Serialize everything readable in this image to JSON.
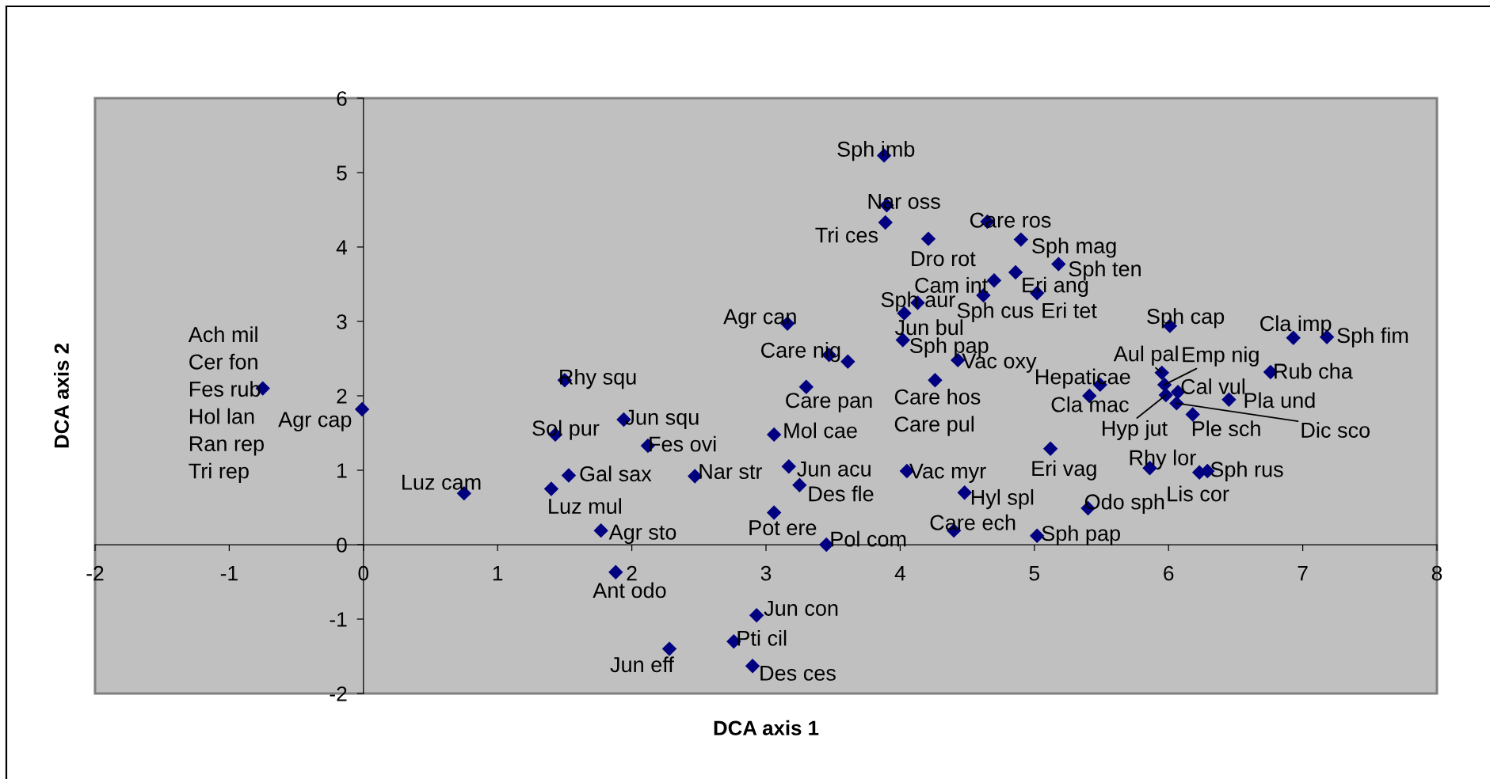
{
  "chart_data": {
    "type": "scatter",
    "xlabel": "DCA axis 1",
    "ylabel": "DCA axis 2",
    "x": [
      -0.75,
      -0.01,
      0.75,
      1.4,
      1.43,
      1.5,
      1.53,
      1.77,
      1.88,
      1.94,
      2.12,
      2.28,
      2.47,
      2.76,
      2.9,
      2.93,
      3.06,
      3.06,
      3.16,
      3.17,
      3.25,
      3.3,
      3.45,
      3.47,
      3.61,
      3.88,
      3.89,
      3.9,
      4.02,
      4.03,
      4.05,
      4.13,
      4.21,
      4.26,
      4.4,
      4.43,
      4.48,
      4.62,
      4.65,
      4.7,
      4.86,
      4.9,
      5.02,
      5.02,
      5.12,
      5.18,
      5.4,
      5.41,
      5.49,
      5.86,
      5.95,
      5.97,
      5.98,
      6.01,
      6.06,
      6.07,
      6.18,
      6.23,
      6.29,
      6.45,
      6.76,
      6.93,
      7.18
    ],
    "values": [
      2.1,
      1.82,
      0.69,
      0.75,
      1.48,
      2.21,
      0.93,
      0.19,
      -0.37,
      1.68,
      1.33,
      -1.4,
      0.92,
      -1.3,
      -1.63,
      -0.95,
      1.48,
      0.43,
      2.97,
      1.05,
      0.8,
      2.12,
      0.0,
      2.55,
      2.46,
      5.23,
      4.33,
      4.56,
      2.75,
      3.11,
      0.99,
      3.25,
      4.11,
      2.21,
      0.19,
      2.48,
      0.7,
      3.35,
      4.34,
      3.55,
      3.66,
      4.1,
      3.38,
      0.12,
      1.29,
      3.77,
      0.49,
      2.0,
      2.15,
      1.03,
      2.31,
      2.15,
      2.01,
      2.94,
      1.9,
      2.05,
      1.75,
      0.97,
      0.99,
      1.95,
      2.32,
      2.78,
      2.79
    ],
    "color": "#000080",
    "marker": "diamond",
    "xlim": [
      -2,
      8
    ],
    "ylim": [
      -2,
      6
    ],
    "xticks": [
      -2,
      -1,
      0,
      1,
      2,
      3,
      4,
      5,
      6,
      7,
      8
    ],
    "yticks": [
      -2,
      -1,
      0,
      1,
      2,
      3,
      4,
      5,
      6
    ],
    "annotations": [
      {
        "text": "Ach mil\nCer fon\nFes rub\nHol lan\nRan rep\nTri rep",
        "x": -0.75,
        "y": 2.1
      },
      {
        "text": "Agr cap",
        "x": -0.01,
        "y": 1.82
      },
      {
        "text": "Luz cam",
        "x": 0.75,
        "y": 0.69
      },
      {
        "text": "Luz mul",
        "x": 1.4,
        "y": 0.75
      },
      {
        "text": "Sol pur",
        "x": 1.43,
        "y": 1.48
      },
      {
        "text": "Rhy squ",
        "x": 1.5,
        "y": 2.21
      },
      {
        "text": "Gal sax",
        "x": 1.53,
        "y": 0.93
      },
      {
        "text": "Agr sto",
        "x": 1.77,
        "y": 0.19
      },
      {
        "text": "Ant odo",
        "x": 1.88,
        "y": -0.37
      },
      {
        "text": "Jun squ",
        "x": 1.94,
        "y": 1.68
      },
      {
        "text": "Fes ovi",
        "x": 2.12,
        "y": 1.33
      },
      {
        "text": "Jun eff",
        "x": 2.28,
        "y": -1.4
      },
      {
        "text": "Nar str",
        "x": 2.47,
        "y": 0.92
      },
      {
        "text": "Pti cil",
        "x": 2.76,
        "y": -1.3
      },
      {
        "text": "Des ces",
        "x": 2.9,
        "y": -1.63
      },
      {
        "text": "Jun con",
        "x": 2.93,
        "y": -0.95
      },
      {
        "text": "Mol cae",
        "x": 3.06,
        "y": 1.48
      },
      {
        "text": "Pot ere",
        "x": 3.06,
        "y": 0.43
      },
      {
        "text": "Agr can",
        "x": 3.16,
        "y": 2.97
      },
      {
        "text": "Jun acu",
        "x": 3.17,
        "y": 1.05
      },
      {
        "text": "Des fle",
        "x": 3.25,
        "y": 0.8
      },
      {
        "text": "Care pan",
        "x": 3.3,
        "y": 2.12
      },
      {
        "text": "Pol com",
        "x": 3.45,
        "y": 0.0
      },
      {
        "text": "Care nig",
        "x": 3.47,
        "y": 2.55
      },
      {
        "text": "Sph imb",
        "x": 3.88,
        "y": 5.23
      },
      {
        "text": "Tri ces",
        "x": 3.89,
        "y": 4.33
      },
      {
        "text": "Nar oss",
        "x": 3.9,
        "y": 4.56
      },
      {
        "text": "Sph pap",
        "x": 4.02,
        "y": 2.75
      },
      {
        "text": "Jun bul",
        "x": 4.03,
        "y": 3.11
      },
      {
        "text": "Vac myr",
        "x": 4.05,
        "y": 0.99
      },
      {
        "text": "Sph aur",
        "x": 4.13,
        "y": 3.25
      },
      {
        "text": "Dro rot",
        "x": 4.21,
        "y": 4.11
      },
      {
        "text": "Care hos\nCare pul",
        "x": 4.26,
        "y": 2.21
      },
      {
        "text": "Care ech",
        "x": 4.4,
        "y": 0.19
      },
      {
        "text": "Vac oxy",
        "x": 4.43,
        "y": 2.48
      },
      {
        "text": "Hyl spl",
        "x": 4.48,
        "y": 0.7
      },
      {
        "text": "Sph cus",
        "x": 4.62,
        "y": 3.35
      },
      {
        "text": "Care ros",
        "x": 4.65,
        "y": 4.34
      },
      {
        "text": "Cam int",
        "x": 4.7,
        "y": 3.55
      },
      {
        "text": "Eri ang",
        "x": 4.86,
        "y": 3.66
      },
      {
        "text": "Sph mag",
        "x": 4.9,
        "y": 4.1
      },
      {
        "text": "Eri tet",
        "x": 5.02,
        "y": 3.38
      },
      {
        "text": "Sph pap",
        "x": 5.02,
        "y": 0.12
      },
      {
        "text": "Eri vag",
        "x": 5.12,
        "y": 1.29
      },
      {
        "text": "Sph ten",
        "x": 5.18,
        "y": 3.77
      },
      {
        "text": "Odo sph",
        "x": 5.4,
        "y": 0.49
      },
      {
        "text": "Cla mac",
        "x": 5.41,
        "y": 2.0
      },
      {
        "text": "Hepaticae",
        "x": 5.49,
        "y": 2.15
      },
      {
        "text": "Rhy lor",
        "x": 5.86,
        "y": 1.03
      },
      {
        "text": "Aul pal",
        "x": 5.95,
        "y": 2.31
      },
      {
        "text": "Emp nig",
        "x": 5.97,
        "y": 2.15
      },
      {
        "text": "Hyp jut",
        "x": 5.98,
        "y": 2.01
      },
      {
        "text": "Sph cap",
        "x": 6.01,
        "y": 2.94
      },
      {
        "text": "Dic sco",
        "x": 6.06,
        "y": 1.9
      },
      {
        "text": "Cal vul",
        "x": 6.07,
        "y": 2.05
      },
      {
        "text": "Ple sch",
        "x": 6.18,
        "y": 1.75
      },
      {
        "text": "Lis cor",
        "x": 6.23,
        "y": 0.97
      },
      {
        "text": "Sph rus",
        "x": 6.29,
        "y": 0.99
      },
      {
        "text": "Pla und",
        "x": 6.45,
        "y": 1.95
      },
      {
        "text": "Rub cha",
        "x": 6.76,
        "y": 2.32
      },
      {
        "text": "Cla imp",
        "x": 6.93,
        "y": 2.78
      },
      {
        "text": "Sph fim",
        "x": 7.18,
        "y": 2.79
      }
    ]
  }
}
